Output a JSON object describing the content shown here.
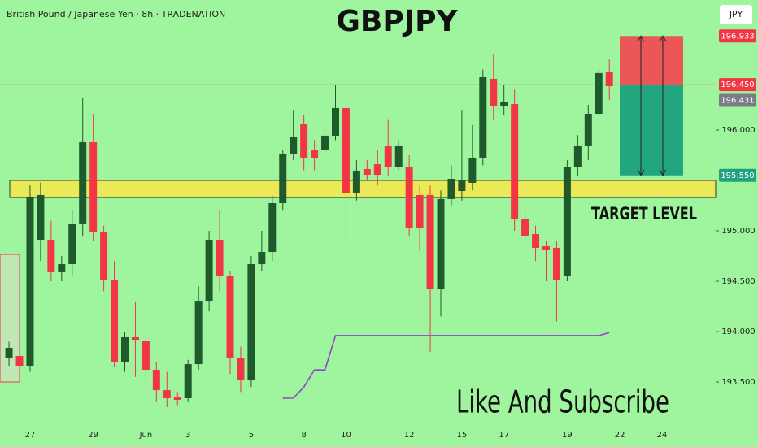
{
  "header": "British Pound / Japanese Yen · 8h · TRADENATION",
  "currency": "JPY",
  "chart_data": {
    "type": "candlestick",
    "title": "GBPJPY",
    "categories": [
      null,
      null,
      "27",
      null,
      null,
      null,
      null,
      null,
      "29",
      null,
      null,
      null,
      null,
      "Jun",
      null,
      null,
      null,
      "3",
      null,
      null,
      null,
      null,
      null,
      "5",
      null,
      null,
      null,
      null,
      "8",
      null,
      null,
      null,
      "10",
      null,
      null,
      null,
      null,
      null,
      "12",
      null,
      null,
      null,
      null,
      "15",
      null,
      null,
      null,
      "17",
      null,
      null,
      null,
      null,
      null,
      "19",
      null,
      null,
      null,
      null,
      "22",
      null,
      null,
      null,
      "24"
    ],
    "open": [
      193.742,
      193.758,
      193.661,
      194.911,
      194.911,
      194.589,
      194.669,
      195.073,
      195.879,
      194.992,
      194.508,
      193.702,
      193.944,
      193.903,
      193.621,
      193.419,
      193.355,
      193.339,
      193.677,
      194.306,
      194.911,
      194.548,
      193.742,
      193.516,
      194.669,
      194.79,
      195.274,
      195.758,
      196.065,
      195.798,
      195.798,
      195.944,
      196.218,
      195.371,
      195.613,
      195.661,
      195.839,
      195.637,
      195.637,
      195.355,
      195.355,
      194.427,
      195.315,
      195.395,
      195.476,
      195.718,
      196.508,
      196.242,
      196.258,
      195.113,
      194.968,
      194.847,
      194.831,
      194.548,
      195.637,
      195.839,
      196.161,
      196.573,
      null,
      null,
      null,
      null,
      null
    ],
    "high": [
      193.9,
      193.8,
      195.45,
      195.48,
      195.1,
      194.75,
      195.2,
      196.323,
      196.161,
      195.05,
      194.7,
      194.0,
      194.3,
      193.95,
      193.7,
      193.6,
      193.4,
      193.72,
      194.45,
      195.0,
      195.2,
      194.6,
      193.85,
      194.75,
      195.0,
      195.35,
      195.8,
      196.2,
      196.15,
      195.9,
      196.05,
      196.45,
      196.3,
      195.7,
      195.7,
      195.8,
      196.1,
      195.9,
      195.75,
      195.45,
      195.45,
      195.4,
      195.65,
      196.2,
      196.05,
      196.6,
      196.75,
      196.45,
      196.4,
      195.2,
      195.05,
      194.9,
      194.9,
      195.7,
      195.95,
      196.25,
      196.6,
      196.7,
      null,
      null,
      null,
      null,
      null
    ],
    "low": [
      193.66,
      193.6,
      193.6,
      194.7,
      194.5,
      194.5,
      194.55,
      194.95,
      194.9,
      194.4,
      193.65,
      193.6,
      193.55,
      193.45,
      193.3,
      193.25,
      193.27,
      193.3,
      193.62,
      194.2,
      194.4,
      193.58,
      193.4,
      193.45,
      194.6,
      194.7,
      195.2,
      195.7,
      195.6,
      195.6,
      195.75,
      195.9,
      194.9,
      195.3,
      195.5,
      195.45,
      195.55,
      195.6,
      194.95,
      194.8,
      193.8,
      194.15,
      195.25,
      195.3,
      195.4,
      195.65,
      196.1,
      196.15,
      195.0,
      194.9,
      194.7,
      194.5,
      194.1,
      194.5,
      195.55,
      195.7,
      196.15,
      196.3,
      null,
      null,
      null,
      null,
      null
    ],
    "close": [
      193.839,
      193.661,
      195.339,
      195.355,
      194.589,
      194.669,
      195.073,
      195.879,
      194.992,
      194.508,
      193.702,
      193.944,
      193.919,
      193.621,
      193.419,
      193.339,
      193.323,
      193.677,
      194.306,
      194.911,
      194.548,
      193.742,
      193.516,
      194.669,
      194.79,
      195.274,
      195.758,
      195.935,
      195.718,
      195.718,
      195.944,
      196.218,
      195.371,
      195.597,
      195.556,
      195.556,
      195.637,
      195.839,
      195.032,
      195.032,
      194.427,
      195.315,
      195.516,
      195.5,
      195.718,
      196.524,
      196.242,
      196.282,
      195.113,
      194.952,
      194.831,
      194.815,
      194.508,
      195.637,
      195.839,
      196.161,
      196.565,
      196.435,
      null,
      null,
      null,
      null,
      null
    ],
    "up_color": "#1f5a2c",
    "down_color": "#f23645",
    "ylim": [
      193.097,
      197.29
    ],
    "yticks": [
      {
        "value": 196,
        "label": "196.000"
      },
      {
        "value": 195,
        "label": "195.000"
      },
      {
        "value": 194.5,
        "label": "194.500"
      },
      {
        "value": 194,
        "label": "194.000"
      },
      {
        "value": 193.5,
        "label": "193.500"
      }
    ],
    "trail": {
      "color": "#8e44c9",
      "values": [
        null,
        null,
        null,
        null,
        null,
        null,
        null,
        null,
        null,
        null,
        null,
        null,
        null,
        null,
        null,
        null,
        null,
        null,
        null,
        null,
        null,
        null,
        null,
        null,
        null,
        null,
        193.339,
        193.34,
        193.45,
        193.62,
        193.62,
        193.96,
        193.96,
        193.96,
        193.96,
        193.96,
        193.96,
        193.96,
        193.96,
        193.96,
        193.96,
        193.96,
        193.96,
        193.96,
        193.96,
        193.96,
        193.96,
        193.96,
        193.96,
        193.96,
        193.96,
        193.96,
        193.96,
        193.96,
        193.96,
        193.96,
        193.96,
        193.99,
        null,
        null,
        null,
        null,
        null
      ]
    },
    "zone": {
      "range": [
        195.33,
        195.5
      ],
      "color": "#f7e84c"
    },
    "price_labels": [
      {
        "value": 196.933,
        "label": "196.933",
        "color": "#f23645"
      },
      {
        "value": 196.45,
        "label": "196.450",
        "color": "#f23645"
      },
      {
        "value": 196.431,
        "label": "196.431",
        "color": "#787b86"
      },
      {
        "value": 195.55,
        "label": "195.550",
        "color": "#1fa37f"
      }
    ],
    "annotations": [
      "TARGET LEVEL",
      "Like And Subscribe"
    ]
  }
}
